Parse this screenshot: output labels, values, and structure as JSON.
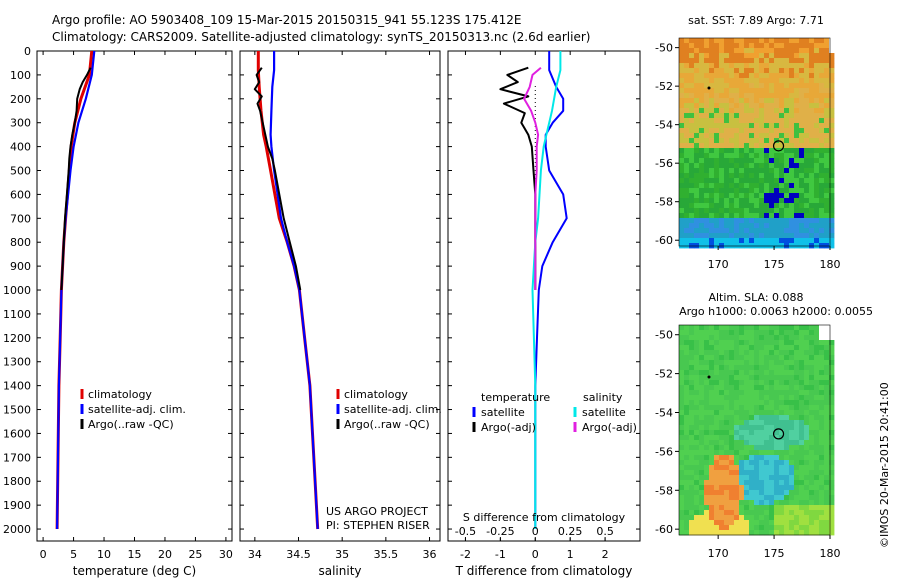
{
  "header": {
    "line1": "Argo profile: AO 5903408_109 15-Mar-2015 20150315_941 55.123S 175.412E",
    "line2": "Climatology: CARS2009. Satellite-adjusted climatology: synTS_20150313.nc (2.6d earlier)"
  },
  "colors": {
    "clim": "#e00000",
    "sat": "#0000ff",
    "argo": "#000000",
    "sat_s": "#00e8e8",
    "argo_s": "#e020e0"
  },
  "credits": {
    "project": "US ARGO PROJECT",
    "pi": "PI: STEPHEN RISER",
    "stamp": "©IMOS 20-Mar-2015 20:41:00"
  },
  "chart_data": [
    {
      "type": "line",
      "name": "temperature",
      "xlabel": "temperature (deg C)",
      "ylabel": "",
      "xlim": [
        -1,
        31
      ],
      "ylim": [
        2050,
        0
      ],
      "xticks": [
        0,
        5,
        10,
        15,
        20,
        25,
        30
      ],
      "yticks": [
        0,
        100,
        200,
        300,
        400,
        500,
        600,
        700,
        800,
        900,
        1000,
        1100,
        1200,
        1300,
        1400,
        1500,
        1600,
        1700,
        1800,
        1900,
        2000
      ],
      "legend": [
        "climatology",
        "satellite-adj. clim.",
        "Argo(..raw -QC)"
      ],
      "series": [
        {
          "name": "climatology",
          "depth": [
            0,
            100,
            200,
            300,
            400,
            500,
            600,
            700,
            800,
            900,
            1000,
            1200,
            1400,
            1600,
            1800,
            2000
          ],
          "values": [
            8.0,
            7.6,
            6.2,
            5.2,
            4.6,
            4.3,
            4.0,
            3.7,
            3.4,
            3.2,
            3.0,
            2.8,
            2.6,
            2.5,
            2.4,
            2.3
          ]
        },
        {
          "name": "satellite-adj. clim.",
          "depth": [
            0,
            100,
            200,
            300,
            400,
            500,
            600,
            700,
            800,
            900,
            1000,
            1200,
            1400,
            1600,
            1800,
            2000
          ],
          "values": [
            8.4,
            8.0,
            7.0,
            5.8,
            5.0,
            4.5,
            4.1,
            3.7,
            3.4,
            3.2,
            3.0,
            2.8,
            2.6,
            2.5,
            2.4,
            2.3
          ]
        },
        {
          "name": "Argo(..raw -QC)",
          "depth": [
            70,
            100,
            130,
            160,
            200,
            250,
            300,
            350,
            400,
            450,
            500,
            600,
            700,
            800,
            900,
            1000
          ],
          "values": [
            7.8,
            7.2,
            6.5,
            6.0,
            5.6,
            5.5,
            5.2,
            4.8,
            4.5,
            4.3,
            4.2,
            3.9,
            3.6,
            3.4,
            3.2,
            3.0
          ]
        }
      ]
    },
    {
      "type": "line",
      "name": "salinity",
      "xlabel": "salinity",
      "ylabel": "",
      "xlim": [
        33.83,
        36.12
      ],
      "ylim": [
        2050,
        0
      ],
      "xticks": [
        34,
        34.5,
        35,
        35.5,
        36
      ],
      "legend": [
        "climatology",
        "satellite-adj. clim.",
        "Argo(..raw -QC)"
      ],
      "series": [
        {
          "name": "climatology",
          "depth": [
            0,
            80,
            150,
            250,
            350,
            400,
            500,
            600,
            700,
            800,
            900,
            1000,
            1200,
            1400,
            1600,
            1800,
            2000
          ],
          "values": [
            34.04,
            34.04,
            34.05,
            34.07,
            34.1,
            34.13,
            34.18,
            34.23,
            34.28,
            34.37,
            34.45,
            34.51,
            34.57,
            34.63,
            34.66,
            34.69,
            34.72
          ]
        },
        {
          "name": "satellite-adj. clim.",
          "depth": [
            0,
            80,
            150,
            250,
            350,
            400,
            500,
            600,
            700,
            800,
            900,
            1000,
            1200,
            1400,
            1600,
            1800,
            2000
          ],
          "values": [
            34.22,
            34.22,
            34.2,
            34.19,
            34.18,
            34.19,
            34.22,
            34.26,
            34.3,
            34.37,
            34.45,
            34.51,
            34.57,
            34.63,
            34.66,
            34.69,
            34.72
          ]
        },
        {
          "name": "Argo(..raw -QC)",
          "depth": [
            70,
            100,
            130,
            160,
            190,
            220,
            250,
            300,
            350,
            400,
            450,
            500,
            600,
            700,
            800,
            900,
            1000
          ],
          "values": [
            34.08,
            34.02,
            34.05,
            34.0,
            34.08,
            34.03,
            34.06,
            34.09,
            34.12,
            34.15,
            34.2,
            34.23,
            34.28,
            34.33,
            34.4,
            34.47,
            34.52
          ]
        }
      ]
    },
    {
      "type": "line",
      "name": "difference from climatology",
      "xlabel": "T difference from climatology",
      "x2label": "S difference from climatology",
      "xlim": [
        -2.5,
        3.0
      ],
      "ylim": [
        2050,
        0
      ],
      "xticks": [
        -2,
        -1,
        0,
        1,
        2
      ],
      "x2ticks": [
        -0.5,
        -0.25,
        0,
        0.25,
        0.5
      ],
      "legend": {
        "temperature": [
          "satellite",
          "Argo(-adj)"
        ],
        "salinity": [
          "satellite",
          "Argo(-adj)"
        ]
      },
      "legend_headers": [
        "temperature",
        "salinity"
      ],
      "series": [
        {
          "name": "T satellite",
          "depth": [
            0,
            80,
            150,
            200,
            250,
            300,
            350,
            400,
            500,
            600,
            700,
            800,
            900,
            1000,
            1200,
            1400,
            1600,
            1800,
            2000
          ],
          "values": [
            0.4,
            0.4,
            0.6,
            0.8,
            0.8,
            0.5,
            0.3,
            0.3,
            0.4,
            0.8,
            0.9,
            0.5,
            0.2,
            0.1,
            0.05,
            0.0,
            0.0,
            0.0,
            0.0
          ]
        },
        {
          "name": "T Argo(-adj)",
          "depth": [
            70,
            100,
            130,
            160,
            190,
            220,
            260,
            300,
            350,
            400,
            500,
            600,
            800,
            1000
          ],
          "values": [
            -0.2,
            -0.8,
            -0.5,
            -1.0,
            -0.2,
            -0.9,
            -0.3,
            -0.4,
            -0.2,
            -0.1,
            -0.05,
            0.0,
            0.0,
            0.0
          ]
        },
        {
          "name": "S satellite",
          "depth": [
            0,
            80,
            150,
            250,
            350,
            400,
            500,
            600,
            700,
            800,
            900,
            1000,
            1200,
            1400,
            1600,
            1800,
            2000
          ],
          "values": [
            0.18,
            0.18,
            0.15,
            0.12,
            0.08,
            0.06,
            0.04,
            0.03,
            0.02,
            0.0,
            -0.01,
            -0.02,
            -0.01,
            0.0,
            0.0,
            0.0,
            0.0
          ]
        },
        {
          "name": "S Argo(-adj)",
          "depth": [
            70,
            100,
            150,
            200,
            250,
            300,
            350,
            400,
            500,
            600,
            700,
            800,
            1000
          ],
          "values": [
            0.04,
            -0.02,
            -0.04,
            -0.08,
            -0.03,
            0.0,
            0.02,
            0.01,
            0.01,
            0.0,
            0.0,
            0.0,
            0.0
          ]
        }
      ]
    }
  ],
  "maps": {
    "top": {
      "title": "sat. SST: 7.89 Argo: 7.71",
      "yticks": [
        -50,
        -52,
        -54,
        -56,
        -58,
        -60
      ],
      "xticks": [
        170,
        175,
        180
      ],
      "marker": {
        "lon": 175.4,
        "lat": -55.1
      }
    },
    "bottom": {
      "title1": "Altim. SLA: 0.088",
      "title2": "Argo h1000: 0.0063 h2000: 0.0055",
      "yticks": [
        -50,
        -52,
        -54,
        -56,
        -58,
        -60
      ],
      "xticks": [
        170,
        175,
        180
      ],
      "marker": {
        "lon": 175.4,
        "lat": -55.1
      }
    }
  }
}
